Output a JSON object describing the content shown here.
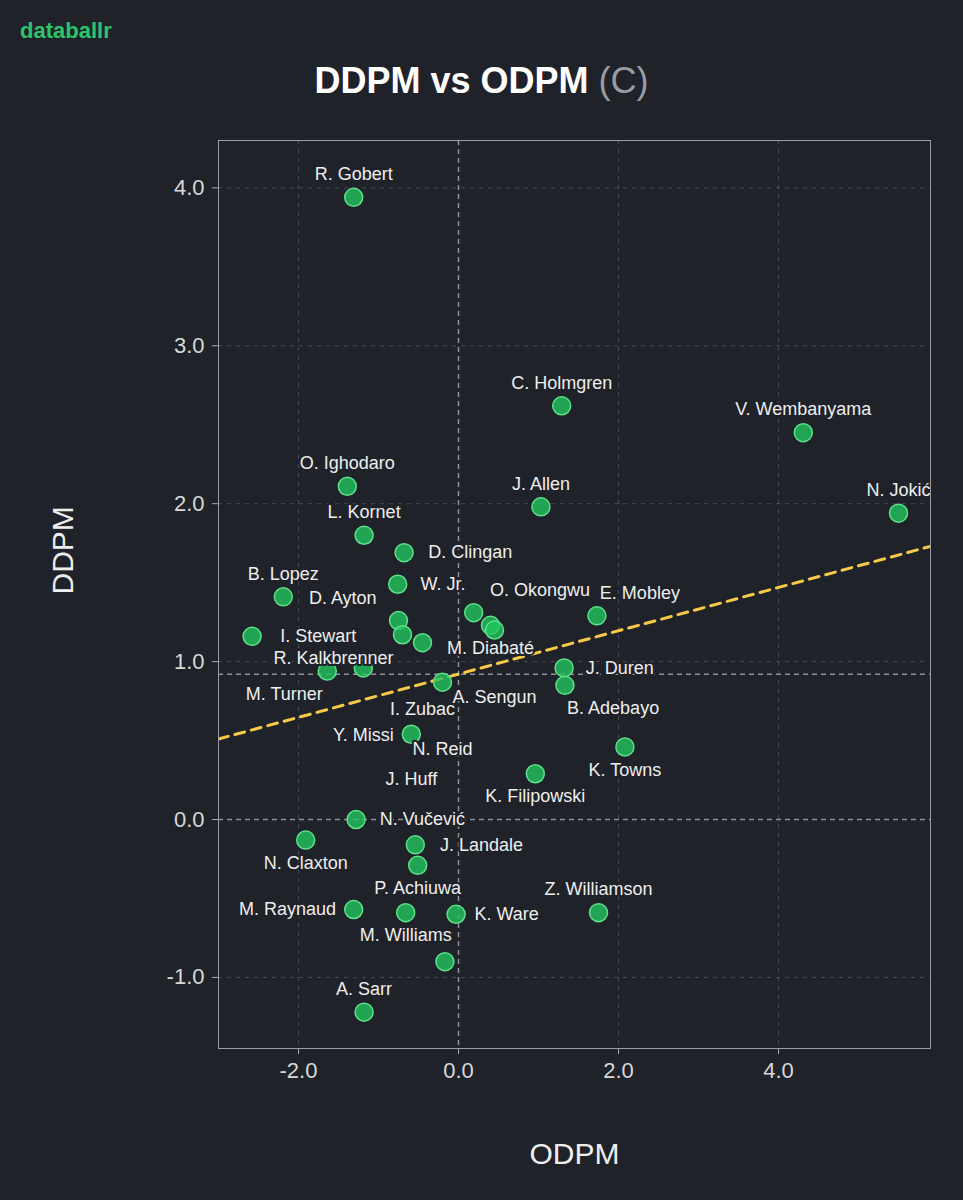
{
  "chart_data": {
    "type": "scatter",
    "brand": "databallr",
    "title": "DDPM vs ODPM",
    "subtitle": "(C)",
    "x_label": "ODPM",
    "y_label": "DDPM",
    "color": "#22c55e",
    "grid": true,
    "xlim": [
      -3.0,
      5.9
    ],
    "ylim": [
      -1.45,
      4.3
    ],
    "xticks": [
      {
        "value": -2,
        "label": "-2.0"
      },
      {
        "value": 0,
        "label": "0.0"
      },
      {
        "value": 2,
        "label": "2.0"
      },
      {
        "value": 4,
        "label": "4.0"
      }
    ],
    "yticks": [
      {
        "value": -1,
        "label": "-1.0"
      },
      {
        "value": 0,
        "label": "0.0"
      },
      {
        "value": 1,
        "label": "1.0"
      },
      {
        "value": 2,
        "label": "2.0"
      },
      {
        "value": 3,
        "label": "3.0"
      },
      {
        "value": 4,
        "label": "4.0"
      }
    ],
    "labels": [
      "R. Gobert",
      "C. Holmgren",
      "V. Wembanyama",
      "N. Jokić",
      "J. Allen",
      "O. Ighodaro",
      "L. Kornet",
      "D. Clingan",
      "W. Jr.",
      "B. Lopez",
      "I. Stewart",
      "O. Okongwu",
      "E. Mobley",
      "M. Diabaté",
      "A. Sengun",
      "D. Ayton",
      "R. Kalkbrenner",
      "I. Zubac",
      "N. Reid",
      "M. Turner",
      "Y. Missi",
      "J. Duren",
      "B. Adebayo",
      "K. Towns",
      "J. Huff",
      "K. Filipowski",
      "N. Claxton",
      "N. Vučević",
      "J. Landale",
      "P. Achiuwa",
      "M. Raynaud",
      "M. Williams",
      "K. Ware",
      "Z. Williamson",
      null,
      "A. Sarr"
    ],
    "x": [
      -1.31,
      1.29,
      4.31,
      5.5,
      1.03,
      -1.39,
      -1.18,
      -0.68,
      -0.76,
      -2.19,
      -2.58,
      0.19,
      1.73,
      0.4,
      0.45,
      -0.75,
      -0.7,
      -0.45,
      -0.2,
      -1.64,
      -1.19,
      1.32,
      1.33,
      2.08,
      -0.59,
      0.96,
      -1.91,
      -1.28,
      -0.54,
      -0.51,
      -1.31,
      -0.66,
      -0.03,
      1.75,
      -0.17,
      -1.18
    ],
    "values": [
      3.94,
      2.62,
      2.45,
      1.94,
      1.98,
      2.11,
      1.8,
      1.69,
      1.49,
      1.41,
      1.16,
      1.31,
      1.29,
      1.23,
      1.2,
      1.26,
      1.17,
      1.12,
      0.87,
      0.94,
      0.96,
      0.96,
      0.85,
      0.46,
      0.54,
      0.29,
      -0.13,
      0.0,
      -0.16,
      -0.29,
      -0.57,
      -0.59,
      -0.6,
      -0.59,
      -0.9,
      -1.22
    ],
    "trend_line": {
      "x": [
        -3.0,
        5.9
      ],
      "y": [
        0.51,
        1.73
      ],
      "color": "#f7c948",
      "line_style": "dashed"
    },
    "reference_lines": {
      "x": [
        0
      ],
      "y": [
        0,
        0.92
      ],
      "line_style": "dashed"
    }
  }
}
